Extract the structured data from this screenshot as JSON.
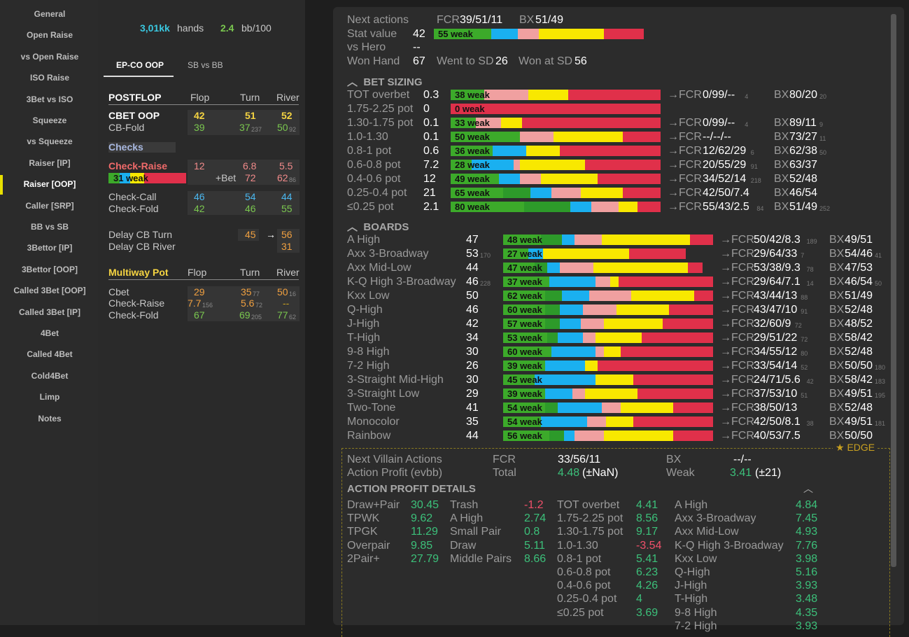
{
  "sidebar": [
    "General",
    "Open Raise",
    "vs Open Raise",
    "ISO Raise",
    "3Bet vs ISO",
    "Squeeze",
    "vs Squeeze",
    "Raiser [IP]",
    "Raiser [OOP]",
    "Caller [SRP]",
    "BB vs SB",
    "3Bettor [IP]",
    "3Bettor [OOP]",
    "Called 3Bet [OOP]",
    "Called 3Bet [IP]",
    "4Bet",
    "Called 4Bet",
    "Cold4Bet",
    "Limp",
    "Notes"
  ],
  "summary": {
    "hands_val": "3,01kk",
    "hands_lbl": "hands",
    "bb_val": "2.4",
    "bb_lbl": "bb/100"
  },
  "tabs": [
    "EP-CO OOP",
    "SB vs BB"
  ],
  "postflop": {
    "title": "POSTFLOP",
    "flop": "Flop",
    "turn": "Turn",
    "river": "River",
    "cbet": "CBET OOP",
    "cbet_f": "42",
    "cbet_t": "51",
    "cbet_r": "52",
    "cbfold": "CB-Fold",
    "cbfold_f": "39",
    "cbfold_t": "37",
    "cbfold_t_n": "237",
    "cbfold_r": "50",
    "cbfold_r_n": "92",
    "checks": "Checks",
    "cr": "Check-Raise",
    "cr_f": "12",
    "cr_t": "6.8",
    "cr_r": "5.5",
    "cr_bar": "31 weak",
    "bet": "+Bet",
    "bet_t": "72",
    "bet_r": "62",
    "bet_r_n": "86",
    "cc": "Check-Call",
    "cc_f": "46",
    "cc_t": "54",
    "cc_r": "44",
    "cf": "Check-Fold",
    "cf_f": "42",
    "cf_t": "46",
    "cf_r": "55",
    "dcbt": "Delay CB Turn",
    "dcbt_t": "45",
    "arrow": "→",
    "dcbt_r": "56",
    "dcbr": "Delay CB River",
    "dcbr_r": "31"
  },
  "multiway": {
    "title": "Multiway Pot",
    "flop": "Flop",
    "turn": "Turn",
    "river": "River",
    "cbet": "Cbet",
    "cbet_f": "29",
    "cbet_t": "35",
    "cbet_t_n": "77",
    "cbet_r": "50",
    "cbet_r_n": "16",
    "cr": "Check-Raise",
    "cr_f": "7.7",
    "cr_f_n": "156",
    "cr_t": "5.6",
    "cr_t_n": "72",
    "cr_r": "--",
    "cf": "Check-Fold",
    "cf_f": "67",
    "cf_t": "69",
    "cf_t_n": "205",
    "cf_r": "77",
    "cf_r_n": "62"
  },
  "top": {
    "next": "Next actions",
    "fcr_l": "FCR",
    "fcr": "39/51/11",
    "bx_l": "BX",
    "bx": "51/49",
    "stat": "Stat value",
    "stat_v": "42",
    "stat_bar": "55 weak",
    "vshero": "vs Hero",
    "vshero_v": "--",
    "won": "Won Hand",
    "won_v": "67",
    "wtsd": "Went to SD",
    "wtsd_v": "26",
    "wsd": "Won at SD",
    "wsd_v": "56"
  },
  "colors": {
    "green": "#3caa2a",
    "green2": "#2d9a2a",
    "blue": "#1ab0f0",
    "pink": "#f0a0a0",
    "yellow": "#f8e800",
    "red": "#e0304a"
  },
  "bet_sizing": {
    "title": "BET SIZING",
    "rows": [
      {
        "l": "TOT overbet",
        "v": "0.3",
        "bar": "38 weak",
        "seg": [
          0.16,
          0,
          0,
          0.21,
          0.19,
          0.44
        ],
        "fcr": "0/99/--",
        "fn": "4",
        "bx": "80/20",
        "bn": "20"
      },
      {
        "l": "1.75-2.25 pot",
        "v": "0",
        "bar": "0 weak",
        "seg": [
          0,
          0,
          0,
          0,
          0,
          1
        ],
        "fcr": "",
        "fn": "",
        "bx": "",
        "bn": ""
      },
      {
        "l": "1.30-1.75 pot",
        "v": "0.1",
        "bar": "33 weak",
        "seg": [
          0.12,
          0,
          0,
          0.12,
          0.1,
          0.66
        ],
        "fcr": "0/99/--",
        "fn": "4",
        "bx": "89/11",
        "bn": "9"
      },
      {
        "l": "1.0-1.30",
        "v": "0.1",
        "bar": "50 weak",
        "seg": [
          0.33,
          0,
          0,
          0.16,
          0.33,
          0.18
        ],
        "fcr": "--/--/--",
        "fn": "",
        "bx": "73/27",
        "bn": "11"
      },
      {
        "l": "0.8-1 pot",
        "v": "0.6",
        "bar": "36 weak",
        "seg": [
          0.2,
          0,
          0.16,
          0,
          0.16,
          0.48
        ],
        "fcr": "12/62/29",
        "fn": "6",
        "bx": "62/38",
        "bn": "50"
      },
      {
        "l": "0.6-0.8 pot",
        "v": "7.2",
        "bar": "28 weak",
        "seg": [
          0.1,
          0,
          0.2,
          0.03,
          0.31,
          0.36
        ],
        "fcr": "20/55/29",
        "fn": "91",
        "bx": "63/37",
        "bn": ""
      },
      {
        "l": "0.4-0.6 pot",
        "v": "12",
        "bar": "49 weak",
        "seg": [
          0.23,
          0,
          0.1,
          0.1,
          0.27,
          0.3
        ],
        "fcr": "34/52/14",
        "fn": "218",
        "bx": "52/48",
        "bn": ""
      },
      {
        "l": "0.25-0.4 pot",
        "v": "21",
        "bar": "65 weak",
        "seg": [
          0.25,
          0.13,
          0.1,
          0.14,
          0.2,
          0.18
        ],
        "fcr": "42/50/7.4",
        "fn": "",
        "bx": "46/54",
        "bn": ""
      },
      {
        "l": "≤0.25 pot",
        "v": "2.1",
        "bar": "80 weak",
        "seg": [
          0.35,
          0.22,
          0.1,
          0.13,
          0.09,
          0.11
        ],
        "fcr": "55/43/2.5",
        "fn": "84",
        "bx": "51/49",
        "bn": "252"
      }
    ]
  },
  "boards": {
    "title": "BOARDS",
    "rows": [
      {
        "l": "A High",
        "v": "47",
        "n": "",
        "bar": "48 weak",
        "seg": [
          0.18,
          0.1,
          0.06,
          0.13,
          0.42,
          0.11
        ],
        "fcr": "50/42/8.3",
        "fn": "189",
        "bx": "49/51",
        "bn": ""
      },
      {
        "l": "Axx 3-Broadway",
        "v": "53",
        "n": "170",
        "bar": "27 weak",
        "seg": [
          0.12,
          0,
          0.07,
          0,
          0.41,
          0.27
        ],
        "fcr": "29/64/33",
        "fn": "7",
        "bx": "54/46",
        "bn": "41"
      },
      {
        "l": "Axx Mid-Low",
        "v": "44",
        "n": "",
        "bar": "47 weak",
        "seg": [
          0.15,
          0.06,
          0.06,
          0.16,
          0.45,
          0.07
        ],
        "fcr": "53/38/9.3",
        "fn": "78",
        "bx": "47/53",
        "bn": ""
      },
      {
        "l": "K-Q High 3-Broadway",
        "v": "46",
        "n": "228",
        "bar": "37 weak",
        "seg": [
          0.22,
          0,
          0.22,
          0.07,
          0.04,
          0.45
        ],
        "fcr": "29/64/7.1",
        "fn": "14",
        "bx": "46/54",
        "bn": "50"
      },
      {
        "l": "Kxx Low",
        "v": "50",
        "n": "",
        "bar": "62 weak",
        "seg": [
          0.2,
          0.08,
          0.13,
          0.2,
          0.3,
          0.09
        ],
        "fcr": "43/44/13",
        "fn": "88",
        "bx": "51/49",
        "bn": ""
      },
      {
        "l": "Q-High",
        "v": "46",
        "n": "",
        "bar": "60 weak",
        "seg": [
          0.2,
          0.07,
          0.11,
          0.16,
          0.25,
          0.21
        ],
        "fcr": "43/47/10",
        "fn": "91",
        "bx": "52/48",
        "bn": ""
      },
      {
        "l": "J-High",
        "v": "42",
        "n": "",
        "bar": "57 weak",
        "seg": [
          0.2,
          0.07,
          0.1,
          0.11,
          0.28,
          0.24
        ],
        "fcr": "32/60/9",
        "fn": "72",
        "bx": "48/52",
        "bn": ""
      },
      {
        "l": "T-High",
        "v": "34",
        "n": "",
        "bar": "53 weak",
        "seg": [
          0.21,
          0.05,
          0.12,
          0.06,
          0.22,
          0.34
        ],
        "fcr": "29/51/22",
        "fn": "72",
        "bx": "58/42",
        "bn": ""
      },
      {
        "l": "9-8 High",
        "v": "30",
        "n": "",
        "bar": "60 weak",
        "seg": [
          0.23,
          0,
          0.21,
          0.04,
          0.08,
          0.44
        ],
        "fcr": "34/55/12",
        "fn": "80",
        "bx": "52/48",
        "bn": ""
      },
      {
        "l": "7-2 High",
        "v": "26",
        "n": "",
        "bar": "39 weak",
        "seg": [
          0.2,
          0,
          0.19,
          0,
          0.06,
          0.55
        ],
        "fcr": "33/54/14",
        "fn": "52",
        "bx": "50/50",
        "bn": "180"
      },
      {
        "l": "3-Straight Mid-High",
        "v": "30",
        "n": "",
        "bar": "45 weak",
        "seg": [
          0.15,
          0,
          0.29,
          0,
          0.18,
          0.38
        ],
        "fcr": "24/71/5.6",
        "fn": "42",
        "bx": "58/42",
        "bn": "183"
      },
      {
        "l": "3-Straight Low",
        "v": "29",
        "n": "",
        "bar": "39 weak",
        "seg": [
          0.2,
          0,
          0.13,
          0.06,
          0.25,
          0.36
        ],
        "fcr": "37/53/10",
        "fn": "51",
        "bx": "49/51",
        "bn": "195"
      },
      {
        "l": "Two-Tone",
        "v": "41",
        "n": "",
        "bar": "54 weak",
        "seg": [
          0.2,
          0.06,
          0.21,
          0.09,
          0.25,
          0.19
        ],
        "fcr": "38/50/13",
        "fn": "",
        "bx": "52/48",
        "bn": ""
      },
      {
        "l": "Monocolor",
        "v": "35",
        "n": "",
        "bar": "54 weak",
        "seg": [
          0.18,
          0,
          0.22,
          0.09,
          0.13,
          0.38
        ],
        "fcr": "42/50/8.1",
        "fn": "38",
        "bx": "49/51",
        "bn": "181"
      },
      {
        "l": "Rainbow",
        "v": "44",
        "n": "",
        "bar": "56 weak",
        "seg": [
          0.22,
          0.07,
          0.05,
          0.14,
          0.33,
          0.19
        ],
        "fcr": "40/53/7.5",
        "fn": "",
        "bx": "50/50",
        "bn": ""
      }
    ]
  },
  "arrow": "→",
  "fcr_lbl": "FCR",
  "bx_lbl": "BX",
  "edge": {
    "label": "EDGE",
    "nva": "Next Villain Actions",
    "fcr": "FCR",
    "fcr_v": "33/56/11",
    "bx": "BX",
    "bx_v": "--/--",
    "ap": "Action Profit (evbb)",
    "total": "Total",
    "total_v": "4.48",
    "total_n": "(±NaN)",
    "weak": "Weak",
    "weak_v": "3.41",
    "weak_n": "(±21)",
    "details": "ACTION PROFIT DETAILS",
    "c1": [
      [
        "Draw+Pair",
        "30.45"
      ],
      [
        "TPWK",
        "9.62"
      ],
      [
        "TPGK",
        "11.29"
      ],
      [
        "Overpair",
        "9.85"
      ],
      [
        "2Pair+",
        "27.79"
      ]
    ],
    "c2": [
      [
        "Trash",
        "-1.2"
      ],
      [
        "A High",
        "2.74"
      ],
      [
        "Small Pair",
        "0.8"
      ],
      [
        "Draw",
        "5.11"
      ],
      [
        "Middle Pairs",
        "8.66"
      ]
    ],
    "c3": [
      [
        "TOT overbet",
        "4.41"
      ],
      [
        "1.75-2.25 pot",
        "8.56"
      ],
      [
        "1.30-1.75 pot",
        "9.17"
      ],
      [
        "1.0-1.30",
        "-3.54"
      ],
      [
        "0.8-1 pot",
        "5.41"
      ],
      [
        "0.6-0.8 pot",
        "6.23"
      ],
      [
        "0.4-0.6 pot",
        "4.26"
      ],
      [
        "0.25-0.4 pot",
        "4"
      ],
      [
        "≤0.25 pot",
        "3.69"
      ]
    ],
    "c4": [
      [
        "A High",
        "4.84"
      ],
      [
        "Axx 3-Broadway",
        "7.45"
      ],
      [
        "Axx Mid-Low",
        "4.93"
      ],
      [
        "K-Q High 3-Broadway",
        "7.76"
      ],
      [
        "Kxx Low",
        "3.98"
      ],
      [
        "Q-High",
        "5.16"
      ],
      [
        "J-High",
        "3.93"
      ],
      [
        "T-High",
        "3.48"
      ],
      [
        "9-8 High",
        "4.35"
      ],
      [
        "7-2 High",
        "3.93"
      ]
    ]
  }
}
